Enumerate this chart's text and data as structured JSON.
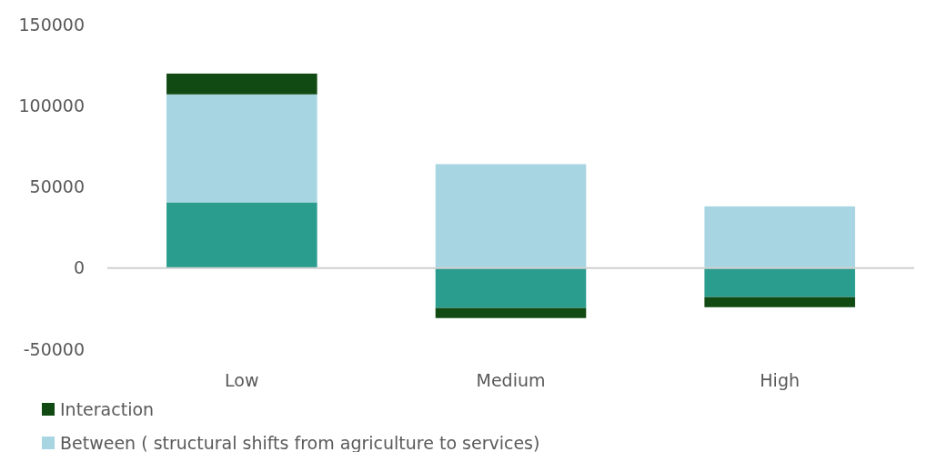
{
  "chart_data": {
    "type": "bar",
    "stacked": true,
    "categories": [
      "Low",
      "Medium",
      "High"
    ],
    "series": [
      {
        "color": "#2a9d8f",
        "values": [
          40500,
          -24600,
          -17900
        ]
      },
      {
        "name": "Between ( structural shifts from agriculture to services)",
        "color": "#a8d5e2",
        "values": [
          66500,
          64000,
          38000
        ]
      },
      {
        "name": "Interaction",
        "color": "#124a14",
        "values": [
          12800,
          -6200,
          -6200
        ]
      }
    ],
    "ylim": [
      -50000,
      150000
    ],
    "yticks": [
      -50000,
      0,
      50000,
      100000,
      150000
    ],
    "legend": "bottom"
  }
}
